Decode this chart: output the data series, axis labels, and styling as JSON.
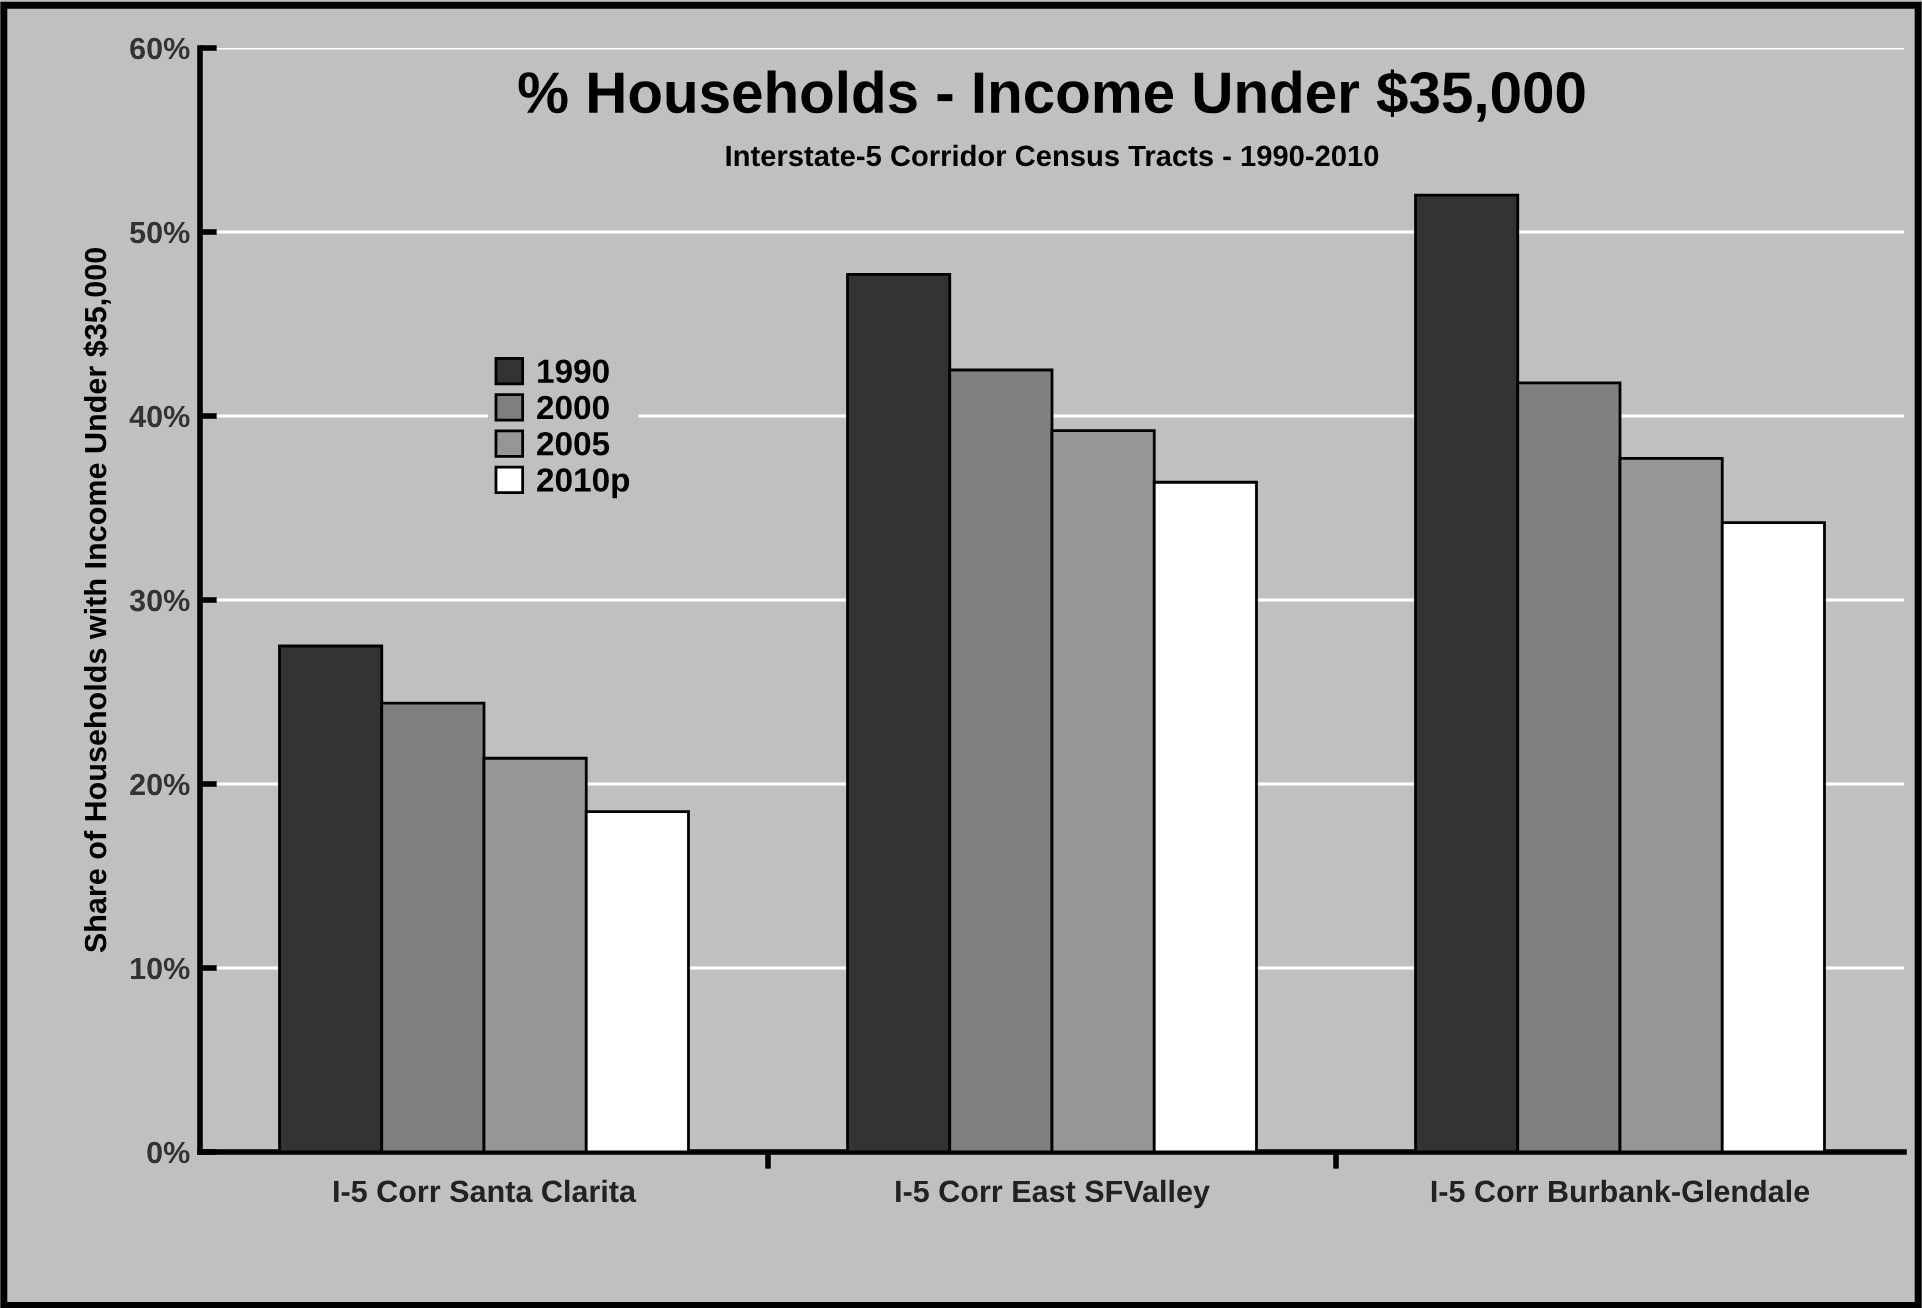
{
  "chart_data": {
    "type": "bar",
    "title": "% Households - Income Under $35,000",
    "subtitle": "Interstate-5 Corridor Census Tracts - 1990-2010",
    "ylabel": "Share of Households with Income Under $35,000",
    "categories": [
      "I-5 Corr Santa Clarita",
      "I-5 Corr East SFValley",
      "I-5 Corr Burbank-Glendale"
    ],
    "series": [
      {
        "name": "1990",
        "color": "#333333",
        "values": [
          27.5,
          47.7,
          52.0
        ]
      },
      {
        "name": "2000",
        "color": "#808080",
        "values": [
          24.4,
          42.5,
          41.8
        ]
      },
      {
        "name": "2005",
        "color": "#969696",
        "values": [
          21.4,
          39.2,
          37.7
        ]
      },
      {
        "name": "2010p",
        "color": "#ffffff",
        "values": [
          18.5,
          36.4,
          34.2
        ]
      }
    ],
    "ylim": [
      0,
      60
    ],
    "yticks": [
      {
        "value": 0,
        "label": "0%"
      },
      {
        "value": 10,
        "label": "10%"
      },
      {
        "value": 20,
        "label": "20%"
      },
      {
        "value": 30,
        "label": "30%"
      },
      {
        "value": 40,
        "label": "40%"
      },
      {
        "value": 50,
        "label": "50%"
      },
      {
        "value": 60,
        "label": "60%"
      }
    ],
    "grid": "y",
    "legend": "top left"
  }
}
